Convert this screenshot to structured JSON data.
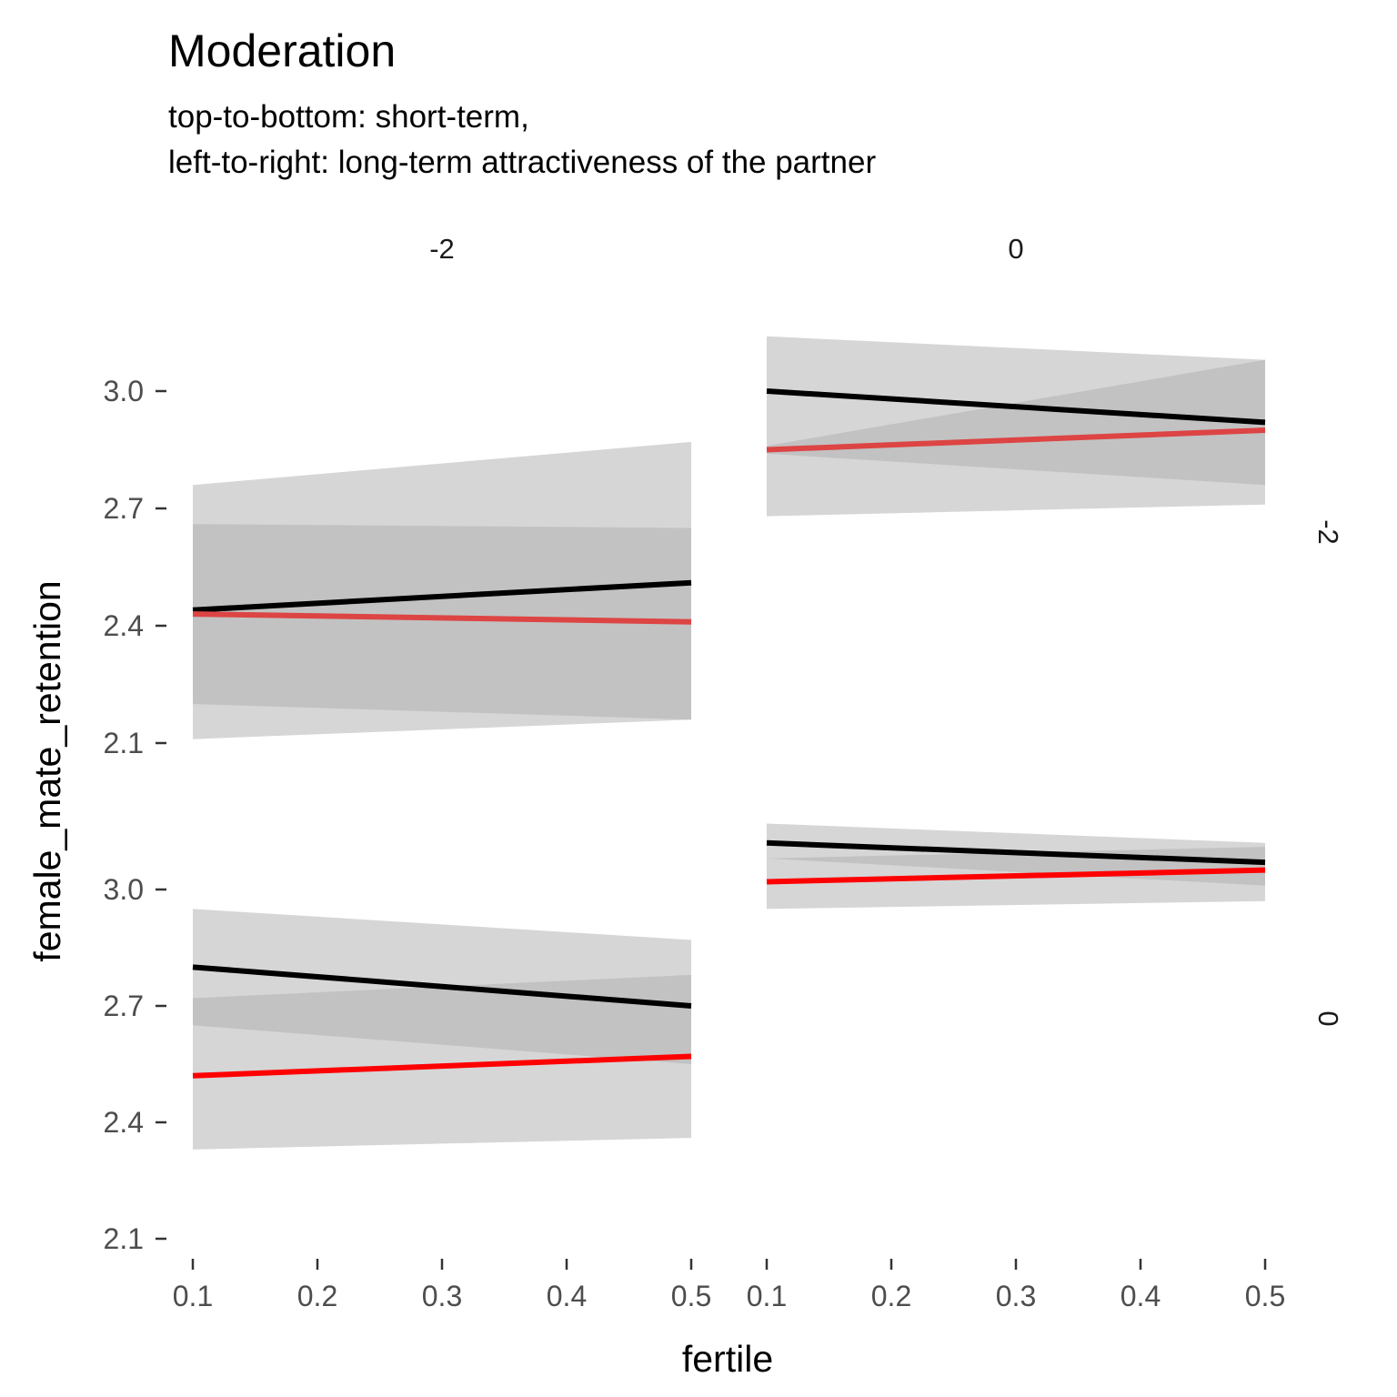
{
  "chart_data": {
    "type": "line",
    "title": "Moderation",
    "subtitle_lines": [
      "top-to-bottom: short-term,",
      "left-to-right: long-term attractiveness of the partner"
    ],
    "xlabel": "fertile",
    "ylabel": "female_mate_retention",
    "xlim": [
      0.1,
      0.5
    ],
    "ylim": [
      2.1,
      3.1
    ],
    "x_ticks": [
      "0.1",
      "0.2",
      "0.3",
      "0.4",
      "0.5"
    ],
    "y_ticks": [
      "2.1",
      "2.4",
      "2.7",
      "3.0"
    ],
    "col_strips": [
      "-2",
      "0"
    ],
    "row_strips": [
      "-2",
      "0"
    ],
    "colors": {
      "line_black": "#000000",
      "line_red": "#ff0000",
      "band_outer": "#d6d6d6",
      "band_inner": "#bdbdbd"
    },
    "panels": [
      {
        "row": "-2",
        "col": "-2",
        "series": [
          {
            "color": "#000000",
            "x": [
              0.1,
              0.5
            ],
            "y": [
              2.44,
              2.51
            ],
            "lower": [
              2.11,
              2.16
            ],
            "upper": [
              2.76,
              2.87
            ]
          },
          {
            "color": "#dd4444",
            "x": [
              0.1,
              0.5
            ],
            "y": [
              2.43,
              2.41
            ],
            "lower": [
              2.2,
              2.16
            ],
            "upper": [
              2.66,
              2.65
            ]
          }
        ]
      },
      {
        "row": "-2",
        "col": "0",
        "series": [
          {
            "color": "#000000",
            "x": [
              0.1,
              0.5
            ],
            "y": [
              3.0,
              2.92
            ],
            "lower": [
              2.68,
              2.71
            ],
            "upper": [
              3.14,
              3.08
            ]
          },
          {
            "color": "#dd4444",
            "x": [
              0.1,
              0.5
            ],
            "y": [
              2.85,
              2.9
            ],
            "lower": [
              2.84,
              2.76
            ],
            "upper": [
              2.86,
              3.08
            ]
          }
        ]
      },
      {
        "row": "0",
        "col": "-2",
        "series": [
          {
            "color": "#000000",
            "x": [
              0.1,
              0.5
            ],
            "y": [
              2.8,
              2.7
            ],
            "lower": [
              2.65,
              2.55
            ],
            "upper": [
              2.95,
              2.87
            ]
          },
          {
            "color": "#ff0000",
            "x": [
              0.1,
              0.5
            ],
            "y": [
              2.52,
              2.57
            ],
            "lower": [
              2.33,
              2.36
            ],
            "upper": [
              2.72,
              2.78
            ]
          }
        ]
      },
      {
        "row": "0",
        "col": "0",
        "series": [
          {
            "color": "#000000",
            "x": [
              0.1,
              0.5
            ],
            "y": [
              3.12,
              3.07
            ],
            "lower": [
              3.08,
              3.01
            ],
            "upper": [
              3.17,
              3.12
            ]
          },
          {
            "color": "#ff0000",
            "x": [
              0.1,
              0.5
            ],
            "y": [
              3.02,
              3.05
            ],
            "lower": [
              2.95,
              2.97
            ],
            "upper": [
              3.08,
              3.11
            ]
          }
        ]
      }
    ]
  }
}
